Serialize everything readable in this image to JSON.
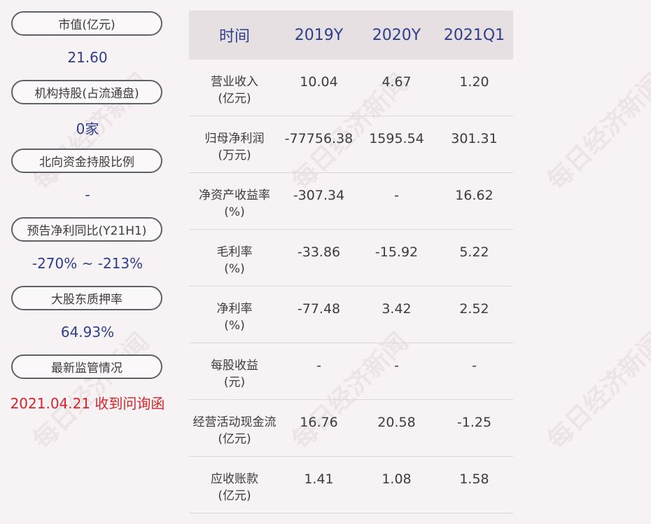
{
  "left_panel": {
    "items": [
      {
        "label": "市值(亿元)",
        "value": "21.60"
      },
      {
        "label": "机构持股(占流通盘)",
        "value": "0家"
      },
      {
        "label": "北向资金持股比例",
        "value": "-"
      },
      {
        "label": "预告净利同比(Y21H1)",
        "value": "-270% ~ -213%"
      },
      {
        "label": "大股东质押率",
        "value": "64.93%"
      },
      {
        "label": "最新监管情况",
        "value": "2021.04.21 收到问询函"
      }
    ]
  },
  "table": {
    "headers": [
      "时间",
      "2019Y",
      "2020Y",
      "2021Q1"
    ],
    "rows": [
      {
        "label1": "营业收入",
        "label2": "(亿元)",
        "values": [
          "10.04",
          "4.67",
          "1.20"
        ]
      },
      {
        "label1": "归母净利润",
        "label2": "(万元)",
        "values": [
          "-77756.38",
          "1595.54",
          "301.31"
        ]
      },
      {
        "label1": "净资产收益率",
        "label2": "(%)",
        "values": [
          "-307.34",
          "-",
          "16.62"
        ]
      },
      {
        "label1": "毛利率",
        "label2": "(%)",
        "values": [
          "-33.86",
          "-15.92",
          "5.22"
        ]
      },
      {
        "label1": "净利率",
        "label2": "(%)",
        "values": [
          "-77.48",
          "3.42",
          "2.52"
        ]
      },
      {
        "label1": "每股收益",
        "label2": "(元)",
        "values": [
          "-",
          "-",
          "-"
        ]
      },
      {
        "label1": "经营活动现金流",
        "label2": "(亿元)",
        "values": [
          "16.76",
          "20.58",
          "-1.25"
        ]
      },
      {
        "label1": "应收账款",
        "label2": "(亿元)",
        "values": [
          "1.41",
          "1.08",
          "1.58"
        ]
      }
    ]
  },
  "watermark": "每日经济新闻",
  "colors": {
    "value_blue": "#2d3e8c",
    "alert_red": "#d6252a",
    "background": "#f7f2f4"
  }
}
